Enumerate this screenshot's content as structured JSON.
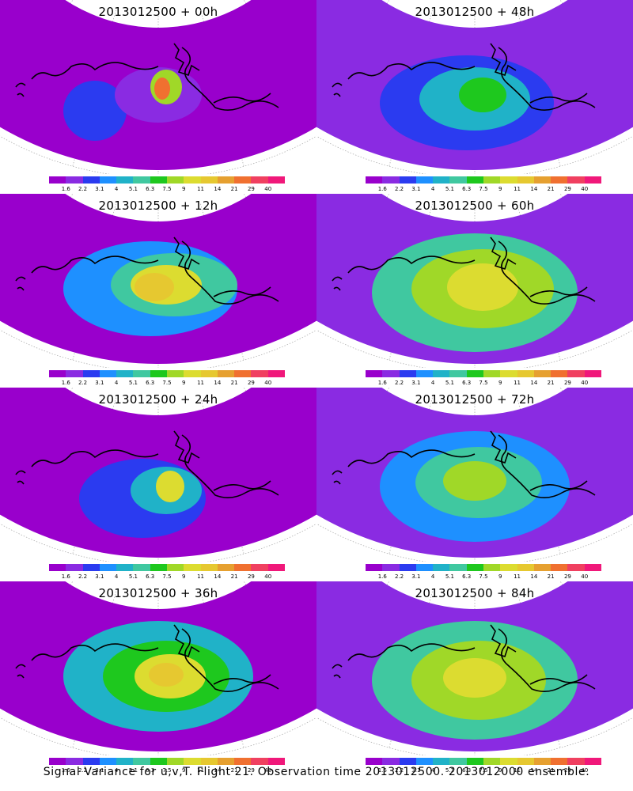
{
  "colorbar": {
    "labels": [
      "1.6",
      "2.2",
      "3.1",
      "4",
      "5.1",
      "6.3",
      "7.5",
      "9",
      "11",
      "14",
      "21",
      "29",
      "40"
    ],
    "colors": [
      "#9900cc",
      "#8a2be2",
      "#2b3bf0",
      "#1e90ff",
      "#20b2c8",
      "#40c8a0",
      "#1ec81e",
      "#a0d828",
      "#dcdc30",
      "#e6c830",
      "#e6a030",
      "#f07030",
      "#f04060",
      "#f0187a"
    ]
  },
  "panels": [
    {
      "title": "2013012500  + 00h",
      "level": 0
    },
    {
      "title": "2013012500  + 48h",
      "level": 4
    },
    {
      "title": "2013012500  + 12h",
      "level": 1
    },
    {
      "title": "2013012500  + 60h",
      "level": 5
    },
    {
      "title": "2013012500  + 24h",
      "level": 2
    },
    {
      "title": "2013012500  + 72h",
      "level": 6
    },
    {
      "title": "2013012500  + 36h",
      "level": 3
    },
    {
      "title": "2013012500  + 84h",
      "level": 7
    }
  ],
  "footer": "Signal Variance for u,v,T. Flight 21. Observation time 2013012500. 2013012000 ensemble."
}
